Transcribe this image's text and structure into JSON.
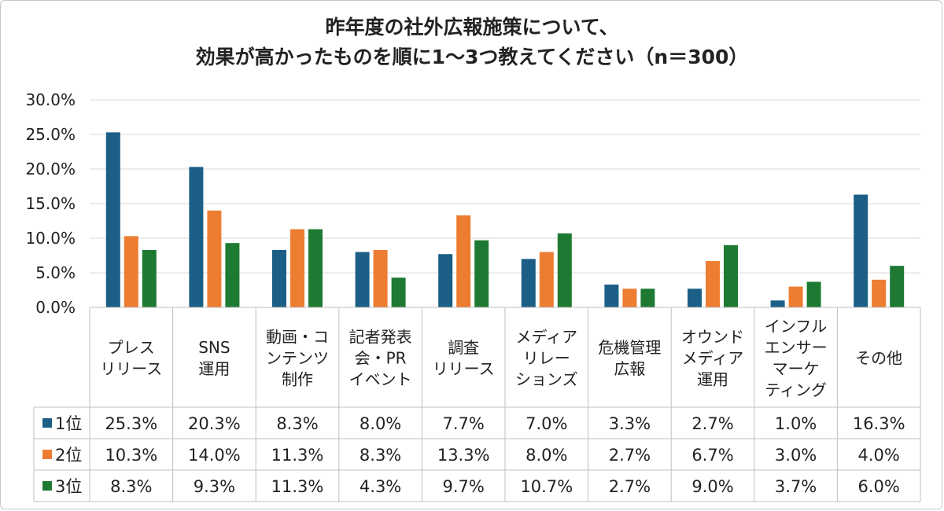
{
  "title_line1": "昨年度の社外広報施策について、",
  "title_line2": "効果が高かったものを順に1～3つ教えてください（n＝300）",
  "chart_data": {
    "type": "bar",
    "categories": [
      [
        "プレス",
        "リリース"
      ],
      [
        "SNS",
        "運用"
      ],
      [
        "動画・コ",
        "ンテンツ",
        "制作"
      ],
      [
        "記者発表",
        "会・PR",
        "イベント"
      ],
      [
        "調査",
        "リリース"
      ],
      [
        "メディア",
        "リレー",
        "ションズ"
      ],
      [
        "危機管理",
        "広報"
      ],
      [
        "オウンド",
        "メディア",
        "運用"
      ],
      [
        "インフル",
        "エンサー",
        "マーケ",
        "ティング"
      ],
      [
        "その他"
      ]
    ],
    "series": [
      {
        "name": "1位",
        "color": "#1b5e86",
        "values": [
          25.3,
          20.3,
          8.3,
          8.0,
          7.7,
          7.0,
          3.3,
          2.7,
          1.0,
          16.3
        ],
        "labels": [
          "25.3%",
          "20.3%",
          "8.3%",
          "8.0%",
          "7.7%",
          "7.0%",
          "3.3%",
          "2.7%",
          "1.0%",
          "16.3%"
        ]
      },
      {
        "name": "2位",
        "color": "#ed7d31",
        "values": [
          10.3,
          14.0,
          11.3,
          8.3,
          13.3,
          8.0,
          2.7,
          6.7,
          3.0,
          4.0
        ],
        "labels": [
          "10.3%",
          "14.0%",
          "11.3%",
          "8.3%",
          "13.3%",
          "8.0%",
          "2.7%",
          "6.7%",
          "3.0%",
          "4.0%"
        ]
      },
      {
        "name": "3位",
        "color": "#1e7a32",
        "values": [
          8.3,
          9.3,
          11.3,
          4.3,
          9.7,
          10.7,
          2.7,
          9.0,
          3.7,
          6.0
        ],
        "labels": [
          "8.3%",
          "9.3%",
          "11.3%",
          "4.3%",
          "9.7%",
          "10.7%",
          "2.7%",
          "9.0%",
          "3.7%",
          "6.0%"
        ]
      }
    ],
    "yticks": [
      "0.0%",
      "5.0%",
      "10.0%",
      "15.0%",
      "20.0%",
      "25.0%",
      "30.0%"
    ],
    "ylim": [
      0,
      30
    ],
    "grid": true,
    "legend": "data table"
  }
}
